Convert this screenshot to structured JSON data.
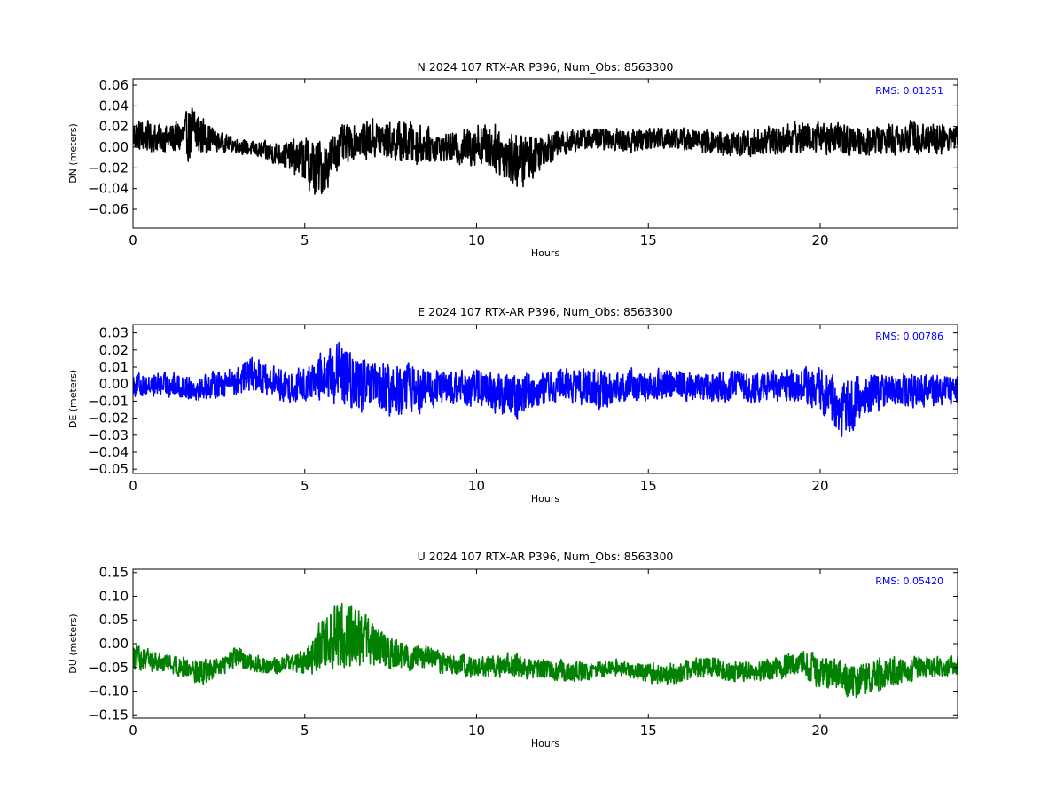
{
  "chart_data": [
    {
      "type": "line",
      "title": "N 2024 107 RTX-AR  P396, Num_Obs: 8563300",
      "xlabel": "Hours",
      "ylabel": "DN (meters)",
      "xlim": [
        0,
        24
      ],
      "ylim": [
        -0.078,
        0.066
      ],
      "xticks": [
        0,
        5,
        10,
        15,
        20
      ],
      "yticks": [
        -0.06,
        -0.04,
        -0.02,
        0.0,
        0.02,
        0.04,
        0.06
      ],
      "ytick_labels": [
        "−0.06",
        "−0.04",
        "−0.02",
        "0.00",
        "0.02",
        "0.04",
        "0.06"
      ],
      "annotation": "RMS:  0.01251",
      "color": "#000000",
      "series": [
        {
          "x": [
            0,
            0.5,
            1,
            1.5,
            1.8,
            2,
            2.5,
            3,
            3.5,
            4,
            4.5,
            5,
            5.3,
            5.6,
            6,
            6.5,
            7,
            7.5,
            8,
            8.5,
            9,
            9.5,
            10,
            10.5,
            11,
            11.3,
            11.6,
            12,
            12.5,
            13,
            13.5,
            14,
            14.5,
            15,
            15.5,
            16,
            16.5,
            17,
            17.5,
            18,
            18.5,
            19,
            19.5,
            20,
            20.5,
            21,
            21.5,
            22,
            22.5,
            23,
            23.5,
            24
          ],
          "center": [
            0.012,
            0.01,
            0.008,
            0.01,
            0.015,
            0.012,
            0.005,
            0.002,
            -0.002,
            -0.005,
            -0.008,
            -0.012,
            -0.022,
            -0.018,
            0.0,
            0.006,
            0.008,
            0.006,
            0.004,
            0.002,
            0.0,
            -0.002,
            0.004,
            0.0,
            -0.01,
            -0.014,
            -0.008,
            0.0,
            0.004,
            0.008,
            0.008,
            0.008,
            0.006,
            0.008,
            0.01,
            0.008,
            0.006,
            0.004,
            0.002,
            0.004,
            0.006,
            0.008,
            0.01,
            0.01,
            0.008,
            0.006,
            0.006,
            0.008,
            0.01,
            0.01,
            0.008,
            0.01
          ],
          "spread": [
            0.018,
            0.016,
            0.015,
            0.022,
            0.035,
            0.02,
            0.01,
            0.008,
            0.008,
            0.012,
            0.015,
            0.025,
            0.035,
            0.028,
            0.022,
            0.018,
            0.022,
            0.02,
            0.025,
            0.02,
            0.014,
            0.018,
            0.025,
            0.025,
            0.03,
            0.03,
            0.025,
            0.018,
            0.014,
            0.012,
            0.012,
            0.012,
            0.012,
            0.012,
            0.013,
            0.012,
            0.012,
            0.013,
            0.014,
            0.015,
            0.016,
            0.017,
            0.017,
            0.018,
            0.017,
            0.016,
            0.016,
            0.016,
            0.018,
            0.018,
            0.017,
            0.016
          ]
        }
      ]
    },
    {
      "type": "line",
      "title": "E 2024 107 RTX-AR  P396, Num_Obs: 8563300",
      "xlabel": "Hours",
      "ylabel": "DE (meters)",
      "xlim": [
        0,
        24
      ],
      "ylim": [
        -0.0525,
        0.035
      ],
      "xticks": [
        0,
        5,
        10,
        15,
        20
      ],
      "yticks": [
        -0.05,
        -0.04,
        -0.03,
        -0.02,
        -0.01,
        0.0,
        0.01,
        0.02,
        0.03
      ],
      "ytick_labels": [
        "−0.05",
        "−0.04",
        "−0.03",
        "−0.02",
        "−0.01",
        "0.00",
        "0.01",
        "0.02",
        "0.03"
      ],
      "annotation": "RMS:  0.00786",
      "color": "#0000ff",
      "series": [
        {
          "x": [
            0,
            0.5,
            1,
            1.5,
            2,
            2.5,
            3,
            3.5,
            4,
            4.5,
            5,
            5.5,
            6,
            6.5,
            7,
            7.5,
            8,
            8.5,
            9,
            9.5,
            10,
            10.5,
            11,
            11.5,
            12,
            12.5,
            13,
            13.5,
            14,
            14.5,
            15,
            15.5,
            16,
            16.5,
            17,
            17.5,
            18,
            18.5,
            19,
            19.5,
            20,
            20.5,
            20.8,
            21,
            21.5,
            22,
            22.5,
            23,
            23.5,
            24
          ],
          "center": [
            0.0,
            -0.001,
            0.0,
            -0.002,
            -0.002,
            0.0,
            0.002,
            0.006,
            0.002,
            -0.002,
            0.0,
            0.004,
            0.006,
            0.0,
            -0.003,
            -0.004,
            -0.002,
            -0.004,
            -0.002,
            -0.003,
            -0.002,
            -0.004,
            -0.008,
            -0.004,
            -0.002,
            0.0,
            -0.002,
            -0.004,
            -0.002,
            0.0,
            -0.001,
            0.0,
            0.0,
            -0.002,
            -0.002,
            -0.001,
            -0.002,
            -0.001,
            0.0,
            0.0,
            -0.004,
            -0.012,
            -0.015,
            -0.01,
            -0.006,
            -0.004,
            -0.004,
            -0.004,
            -0.004,
            -0.003
          ],
          "spread": [
            0.008,
            0.007,
            0.008,
            0.008,
            0.008,
            0.009,
            0.01,
            0.012,
            0.01,
            0.01,
            0.012,
            0.016,
            0.02,
            0.018,
            0.018,
            0.018,
            0.016,
            0.014,
            0.012,
            0.012,
            0.012,
            0.014,
            0.016,
            0.012,
            0.01,
            0.01,
            0.012,
            0.014,
            0.01,
            0.01,
            0.01,
            0.01,
            0.01,
            0.01,
            0.01,
            0.01,
            0.01,
            0.01,
            0.011,
            0.012,
            0.015,
            0.018,
            0.02,
            0.016,
            0.012,
            0.011,
            0.011,
            0.011,
            0.01,
            0.009
          ]
        }
      ]
    },
    {
      "type": "line",
      "title": "U 2024 107 RTX-AR  P396, Num_Obs: 8563300",
      "xlabel": "Hours",
      "ylabel": "DU (meters)",
      "xlim": [
        0,
        24
      ],
      "ylim": [
        -0.157,
        0.157
      ],
      "xticks": [
        0,
        5,
        10,
        15,
        20
      ],
      "yticks": [
        -0.15,
        -0.1,
        -0.05,
        0.0,
        0.05,
        0.1,
        0.15
      ],
      "ytick_labels": [
        "−0.15",
        "−0.10",
        "−0.05",
        "0.00",
        "0.05",
        "0.10",
        "0.15"
      ],
      "annotation": "RMS:  0.05420",
      "color": "#008000",
      "series": [
        {
          "x": [
            0,
            0.5,
            1,
            1.5,
            2,
            2.5,
            3,
            3.5,
            4,
            4.5,
            5,
            5.5,
            6,
            6.5,
            7,
            7.5,
            8,
            8.5,
            9,
            9.5,
            10,
            10.5,
            11,
            11.5,
            12,
            12.5,
            13,
            13.5,
            14,
            14.5,
            15,
            15.5,
            16,
            16.5,
            17,
            17.5,
            18,
            18.5,
            19,
            19.5,
            20,
            20.5,
            21,
            21.5,
            22,
            22.5,
            23,
            23.5,
            24
          ],
          "center": [
            -0.03,
            -0.035,
            -0.04,
            -0.05,
            -0.06,
            -0.05,
            -0.03,
            -0.04,
            -0.05,
            -0.04,
            -0.04,
            0.0,
            0.02,
            0.02,
            0.0,
            -0.02,
            -0.03,
            -0.03,
            -0.04,
            -0.045,
            -0.05,
            -0.05,
            -0.04,
            -0.055,
            -0.055,
            -0.055,
            -0.06,
            -0.055,
            -0.05,
            -0.055,
            -0.06,
            -0.065,
            -0.06,
            -0.05,
            -0.05,
            -0.06,
            -0.06,
            -0.055,
            -0.045,
            -0.04,
            -0.06,
            -0.07,
            -0.08,
            -0.07,
            -0.06,
            -0.055,
            -0.05,
            -0.05,
            -0.045
          ],
          "spread": [
            0.03,
            0.025,
            0.02,
            0.025,
            0.03,
            0.02,
            0.025,
            0.02,
            0.02,
            0.02,
            0.03,
            0.06,
            0.08,
            0.07,
            0.05,
            0.04,
            0.03,
            0.03,
            0.025,
            0.025,
            0.025,
            0.025,
            0.03,
            0.025,
            0.025,
            0.025,
            0.025,
            0.02,
            0.02,
            0.02,
            0.025,
            0.025,
            0.025,
            0.025,
            0.025,
            0.025,
            0.025,
            0.025,
            0.03,
            0.03,
            0.04,
            0.045,
            0.045,
            0.04,
            0.035,
            0.03,
            0.025,
            0.025,
            0.025
          ]
        }
      ]
    }
  ]
}
